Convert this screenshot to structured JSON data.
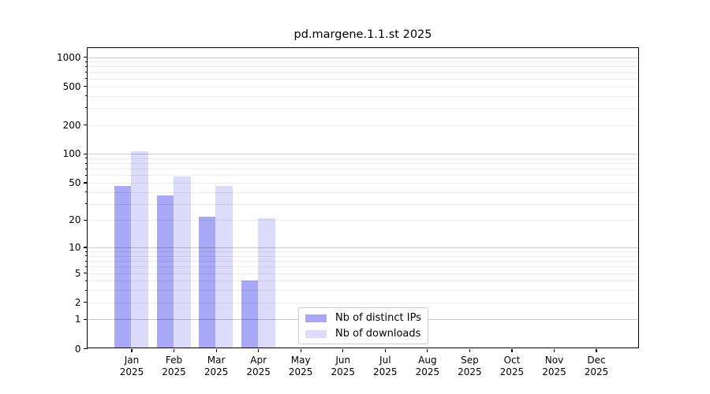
{
  "chart_data": {
    "type": "bar",
    "title": "pd.margene.1.1.st 2025",
    "x": [
      "Jan",
      "Feb",
      "Mar",
      "Apr",
      "May",
      "Jun",
      "Jul",
      "Aug",
      "Sep",
      "Oct",
      "Nov",
      "Dec"
    ],
    "x_year": "2025",
    "series": [
      {
        "name": "Nb of distinct IPs",
        "color": "#a8a8f7",
        "values": [
          46,
          37,
          22,
          4,
          0,
          0,
          0,
          0,
          0,
          0,
          0,
          0
        ]
      },
      {
        "name": "Nb of downloads",
        "color": "#dcdcfa",
        "values": [
          107,
          58,
          46,
          21,
          0,
          0,
          0,
          0,
          0,
          0,
          0,
          0
        ]
      }
    ],
    "ylabel": "",
    "xlabel": "",
    "y_scale": "log10(1+x)",
    "yticks": [
      0,
      1,
      2,
      5,
      10,
      20,
      50,
      100,
      200,
      500,
      1000
    ],
    "ylim": [
      0,
      1300
    ],
    "grid": {
      "major_at": [
        1,
        10,
        100,
        1000
      ],
      "minor": "2-9 per decade"
    },
    "legend_position": "lower center"
  },
  "colors": {
    "grid_major": "rgba(0,0,0,0.21)",
    "grid_minor": "rgba(0,0,0,0.075)",
    "spine": "#000000",
    "legend_border": "#cccccc"
  }
}
